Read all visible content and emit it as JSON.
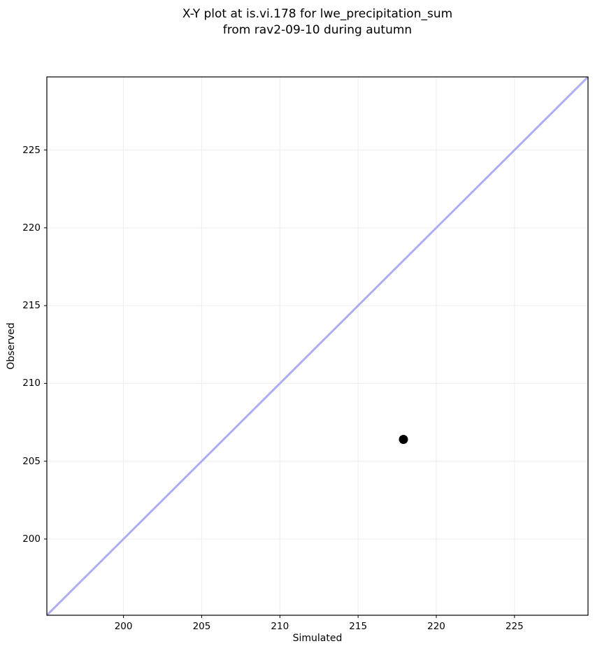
{
  "chart_data": {
    "type": "scatter",
    "title": "X-Y plot at is.vi.178 for lwe_precipitation_sum\nfrom rav2-09-10 during autumn",
    "title_lines": [
      "X-Y plot at is.vi.178 for lwe_precipitation_sum",
      "from rav2-09-10 during autumn"
    ],
    "xlabel": "Simulated",
    "ylabel": "Observed",
    "xlim": [
      195.1,
      229.7
    ],
    "ylim": [
      195.1,
      229.7
    ],
    "xticks": [
      200,
      205,
      210,
      215,
      220,
      225
    ],
    "yticks": [
      200,
      205,
      210,
      215,
      220,
      225
    ],
    "grid": true,
    "grid_color": "#ededed",
    "axis_color": "#000000",
    "background_color": "#ffffff",
    "legend": null,
    "series": [
      {
        "name": "identity-line",
        "type": "line",
        "color": "#afadf2",
        "width": 3,
        "points": [
          [
            195.1,
            195.1
          ],
          [
            229.7,
            229.7
          ]
        ]
      },
      {
        "name": "observation",
        "type": "scatter",
        "color": "#000000",
        "marker_radius": 6.5,
        "points": [
          [
            217.9,
            206.4
          ]
        ]
      }
    ]
  }
}
